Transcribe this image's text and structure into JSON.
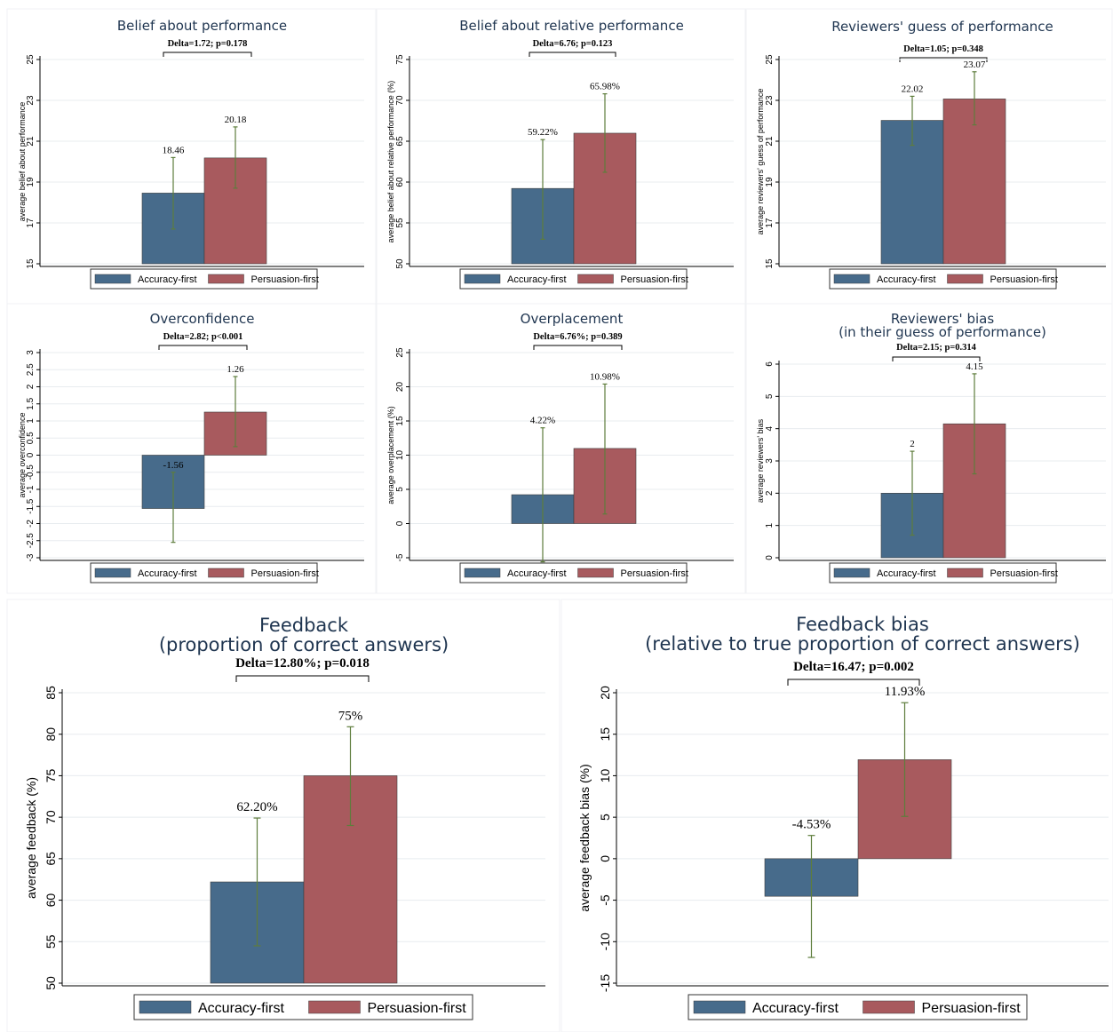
{
  "colors": {
    "accuracy": "#476b8b",
    "persuasion": "#a85a5e",
    "error_bar": "#5e7d3c",
    "grid": "#e8ecef",
    "title": "#1f3550"
  },
  "legend": {
    "accuracy": "Accuracy-first",
    "persuasion": "Persuasion-first"
  },
  "chart_data": [
    {
      "type": "bar",
      "title": "Belief about performance",
      "subtitle": "",
      "delta": "Delta=1.72; p=0.178",
      "ylabel": "average belief about performance",
      "ylim": [
        15,
        25
      ],
      "yticks": [
        15,
        17,
        19,
        21,
        23,
        25
      ],
      "categories": [
        "Accuracy-first",
        "Persuasion-first"
      ],
      "values": [
        18.46,
        20.18
      ],
      "labels": [
        "18.46",
        "20.18"
      ],
      "ci": [
        [
          16.7,
          20.2
        ],
        [
          18.7,
          21.7
        ]
      ]
    },
    {
      "type": "bar",
      "title": "Belief about relative performance",
      "subtitle": "",
      "delta": "Delta=6.76; p=0.123",
      "ylabel": "average belief about relative performance (%)",
      "ylim": [
        50,
        75
      ],
      "yticks": [
        50,
        55,
        60,
        65,
        70,
        75
      ],
      "categories": [
        "Accuracy-first",
        "Persuasion-first"
      ],
      "values": [
        59.22,
        65.98
      ],
      "labels": [
        "59.22%",
        "65.98%"
      ],
      "ci": [
        [
          53.0,
          65.2
        ],
        [
          61.2,
          70.8
        ]
      ]
    },
    {
      "type": "bar",
      "title": "Reviewers' guess of performance",
      "subtitle": "",
      "delta": "Delta=1.05; p=0.348",
      "ylabel": "average reviewers' guess of performance",
      "ylim": [
        15,
        25
      ],
      "yticks": [
        15,
        17,
        19,
        21,
        23,
        25
      ],
      "categories": [
        "Accuracy-first",
        "Persuasion-first"
      ],
      "values": [
        22.02,
        23.07
      ],
      "labels": [
        "22.02",
        "23.07"
      ],
      "ci": [
        [
          20.8,
          23.2
        ],
        [
          21.8,
          24.4
        ]
      ]
    },
    {
      "type": "bar",
      "title": "Overconfidence",
      "subtitle": "",
      "delta": "Delta=2.82; p<0.001",
      "ylabel": "average overconfidence",
      "ylim": [
        -3,
        3
      ],
      "yticks": [
        -3,
        -2.5,
        -2,
        -1.5,
        -1,
        -0.5,
        0,
        0.5,
        1,
        1.5,
        2,
        2.5,
        3
      ],
      "categories": [
        "Accuracy-first",
        "Persuasion-first"
      ],
      "values": [
        -1.56,
        1.26
      ],
      "labels": [
        "-1.56",
        "1.26"
      ],
      "ci": [
        [
          -2.55,
          -0.5
        ],
        [
          0.25,
          2.3
        ]
      ]
    },
    {
      "type": "bar",
      "title": "Overplacement",
      "subtitle": "",
      "delta": "Delta=6.76%; p=0.389",
      "ylabel": "average overplacement (%)",
      "ylim": [
        -5,
        25
      ],
      "yticks": [
        -5,
        0,
        5,
        10,
        15,
        20,
        25
      ],
      "categories": [
        "Accuracy-first",
        "Persuasion-first"
      ],
      "values": [
        4.22,
        10.98
      ],
      "labels": [
        "4.22%",
        "10.98%"
      ],
      "ci": [
        [
          -5.6,
          14.0
        ],
        [
          1.4,
          20.4
        ]
      ]
    },
    {
      "type": "bar",
      "title": "Reviewers' bias",
      "subtitle": "(in their guess of performance)",
      "delta": "Delta=2.15; p=0.314",
      "ylabel": "average reviewers' bias",
      "ylim": [
        0,
        6
      ],
      "yticks": [
        0,
        1,
        2,
        3,
        4,
        5,
        6
      ],
      "categories": [
        "Accuracy-first",
        "Persuasion-first"
      ],
      "values": [
        2,
        4.15
      ],
      "labels": [
        "2",
        "4.15"
      ],
      "ci": [
        [
          0.7,
          3.3
        ],
        [
          2.6,
          5.7
        ]
      ]
    },
    {
      "type": "bar",
      "title": "Feedback",
      "subtitle": "(proportion of correct answers)",
      "delta": "Delta=12.80%; p=0.018",
      "ylabel": "average feedback (%)",
      "ylim": [
        50,
        85
      ],
      "yticks": [
        50,
        55,
        60,
        65,
        70,
        75,
        80,
        85
      ],
      "categories": [
        "Accuracy-first",
        "Persuasion-first"
      ],
      "values": [
        62.2,
        75
      ],
      "labels": [
        "62.20%",
        "75%"
      ],
      "ci": [
        [
          54.5,
          69.9
        ],
        [
          69.0,
          80.9
        ]
      ]
    },
    {
      "type": "bar",
      "title": "Feedback bias",
      "subtitle": "(relative to true proportion of correct answers)",
      "delta": "Delta=16.47; p=0.002",
      "ylabel": "average feedback bias (%)",
      "ylim": [
        -15,
        20
      ],
      "yticks": [
        -15,
        -10,
        -5,
        0,
        5,
        10,
        15,
        20
      ],
      "categories": [
        "Accuracy-first",
        "Persuasion-first"
      ],
      "values": [
        -4.53,
        11.93
      ],
      "labels": [
        "-4.53%",
        "11.93%"
      ],
      "ci": [
        [
          -11.9,
          2.8
        ],
        [
          5.1,
          18.8
        ]
      ]
    }
  ]
}
